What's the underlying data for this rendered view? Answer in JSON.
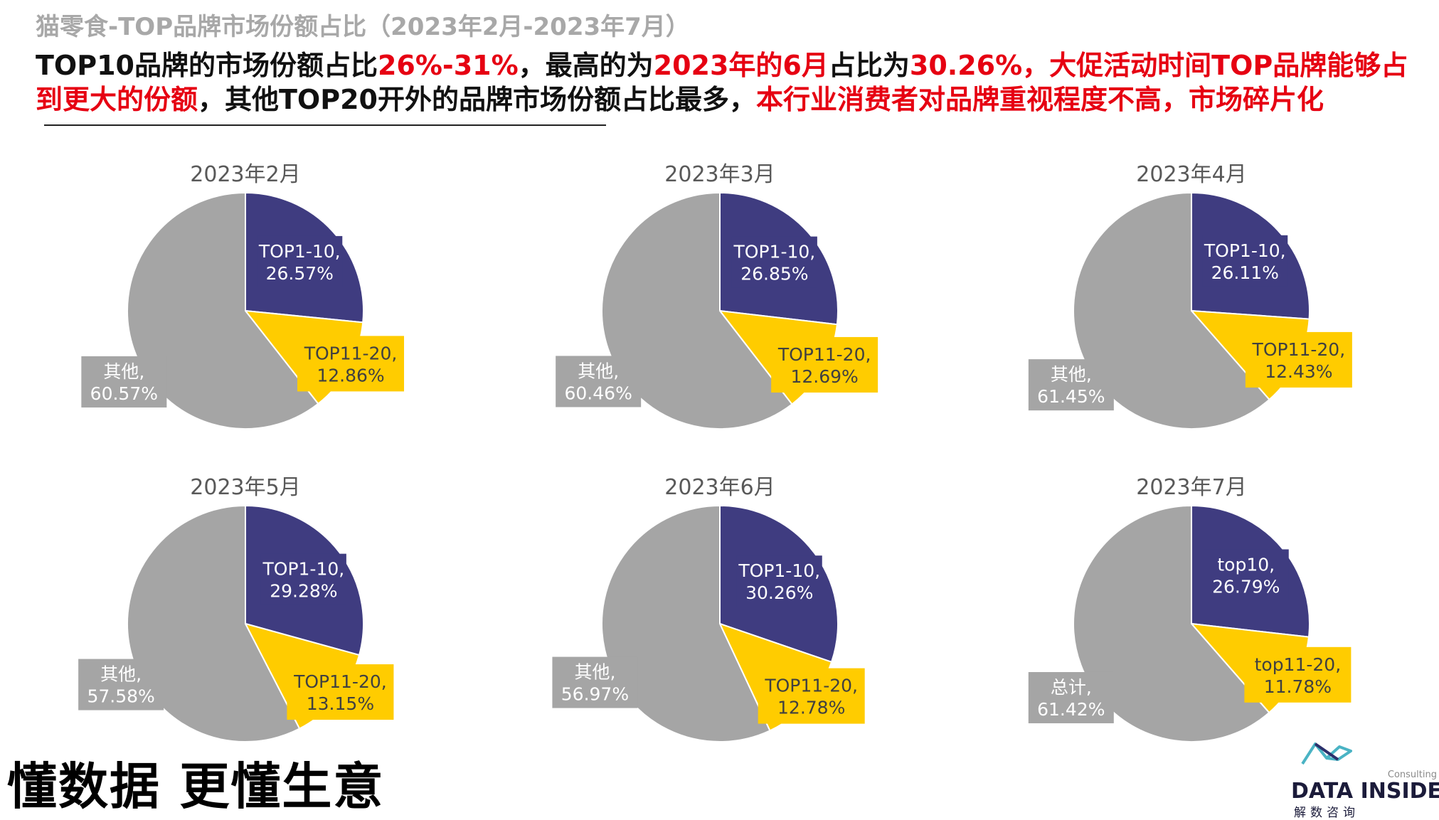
{
  "page": {
    "title": "猫零食-TOP品牌市场份额占比（2023年2月-2023年7月）",
    "headline": [
      {
        "text": "TOP10品牌的市场份额占比",
        "hl": false
      },
      {
        "text": "26%-31%",
        "hl": true
      },
      {
        "text": "，最高的为",
        "hl": false
      },
      {
        "text": "2023年的6月",
        "hl": true
      },
      {
        "text": "占比为",
        "hl": false
      },
      {
        "text": "30.26%，大促活动时间TOP品牌能够占到更大的份额",
        "hl": true
      },
      {
        "text": "，其他TOP20开外的品牌市场份额占比最多，",
        "hl": false
      },
      {
        "text": "本行业消费者对品牌重视程度不高，市场碎片化",
        "hl": true
      }
    ],
    "slogan": "懂数据 更懂生意",
    "logo": {
      "name": "DATA INSIDER",
      "consulting": "Consulting",
      "sub": "解数咨询"
    }
  },
  "colors": {
    "top10": "#3f3c80",
    "top11_20": "#ffcc00",
    "other": "#a5a5a5",
    "highlight": "#e60012"
  },
  "chart_data": [
    {
      "type": "pie",
      "title": "2023年2月",
      "slices": [
        {
          "label": "TOP1-10",
          "value": 26.57
        },
        {
          "label": "TOP11-20",
          "value": 12.86
        },
        {
          "label": "其他",
          "value": 60.57
        }
      ]
    },
    {
      "type": "pie",
      "title": "2023年3月",
      "slices": [
        {
          "label": "TOP1-10",
          "value": 26.85
        },
        {
          "label": "TOP11-20",
          "value": 12.69
        },
        {
          "label": "其他",
          "value": 60.46
        }
      ]
    },
    {
      "type": "pie",
      "title": "2023年4月",
      "slices": [
        {
          "label": "TOP1-10",
          "value": 26.11
        },
        {
          "label": "TOP11-20",
          "value": 12.43
        },
        {
          "label": "其他",
          "value": 61.45
        }
      ]
    },
    {
      "type": "pie",
      "title": "2023年5月",
      "slices": [
        {
          "label": "TOP1-10",
          "value": 29.28
        },
        {
          "label": "TOP11-20",
          "value": 13.15
        },
        {
          "label": "其他",
          "value": 57.58
        }
      ]
    },
    {
      "type": "pie",
      "title": "2023年6月",
      "slices": [
        {
          "label": "TOP1-10",
          "value": 30.26
        },
        {
          "label": "TOP11-20",
          "value": 12.78
        },
        {
          "label": "其他",
          "value": 56.97
        }
      ]
    },
    {
      "type": "pie",
      "title": "2023年7月",
      "slices": [
        {
          "label": "top10",
          "value": 26.79
        },
        {
          "label": "top11-20",
          "value": 11.78
        },
        {
          "label": "总计",
          "value": 61.42
        }
      ]
    }
  ]
}
